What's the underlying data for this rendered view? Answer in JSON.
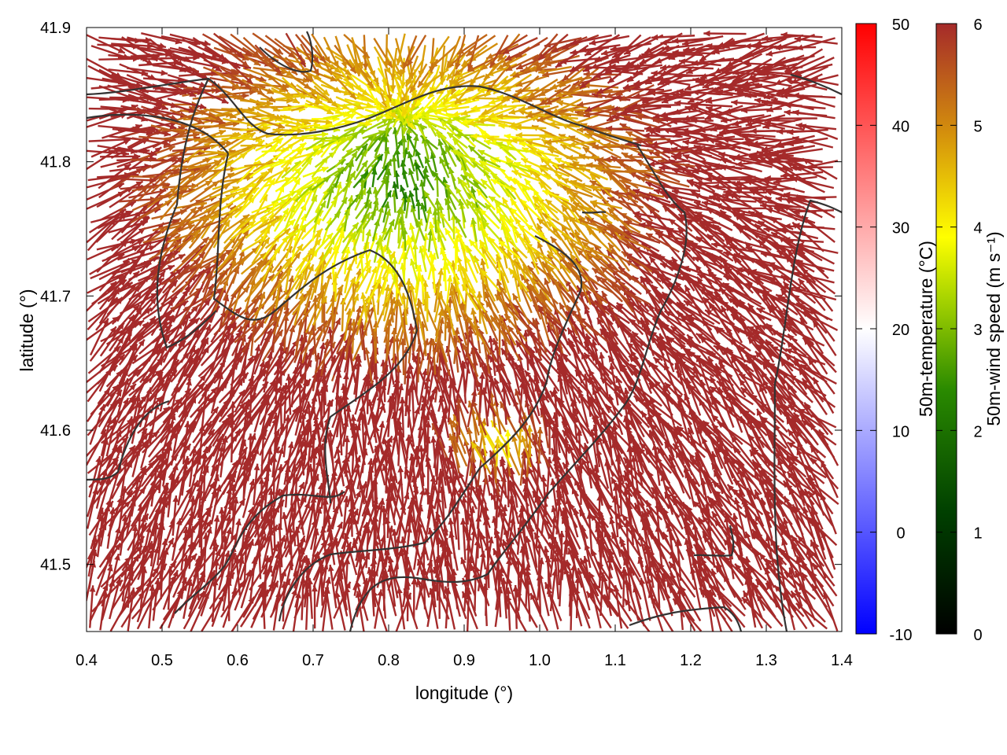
{
  "chart_data": {
    "type": "vector-field",
    "xlabel": "longitude (°)",
    "ylabel": "latitude (°)",
    "xlim": [
      0.4,
      1.4
    ],
    "ylim": [
      41.45,
      41.9
    ],
    "xticks": [
      "0.4",
      "0.5",
      "0.6",
      "0.7",
      "0.8",
      "0.9",
      "1.0",
      "1.1",
      "1.2",
      "1.3",
      "1.4"
    ],
    "yticks": [
      "41.5",
      "41.6",
      "41.7",
      "41.8",
      "41.9"
    ],
    "grid": false,
    "temperature_colorbar": {
      "label": "50m-temperature (°C)",
      "range": [
        -10,
        50
      ],
      "ticks": [
        "-10",
        "0",
        "10",
        "20",
        "30",
        "40",
        "50"
      ],
      "colors": [
        "#0000ff",
        "#ffffff",
        "#ff0000"
      ]
    },
    "windspeed_colorbar": {
      "label": "50m-wind speed (m s⁻¹)",
      "range": [
        0,
        6
      ],
      "ticks": [
        "0",
        "1",
        "2",
        "3",
        "4",
        "5",
        "6"
      ],
      "colors": [
        "#000000",
        "#006400",
        "#7fbf00",
        "#ffff00",
        "#e0a010",
        "#c06820",
        "#a52a2a"
      ]
    },
    "background_temperature": 20,
    "calm_zone": {
      "center": [
        0.82,
        41.78
      ],
      "description": "low wind speeds in the northwest-central area"
    },
    "wind_regime": "strong winds (>=6 m s⁻¹) converging from south and east over most of the domain",
    "contour_color": "#333333"
  }
}
